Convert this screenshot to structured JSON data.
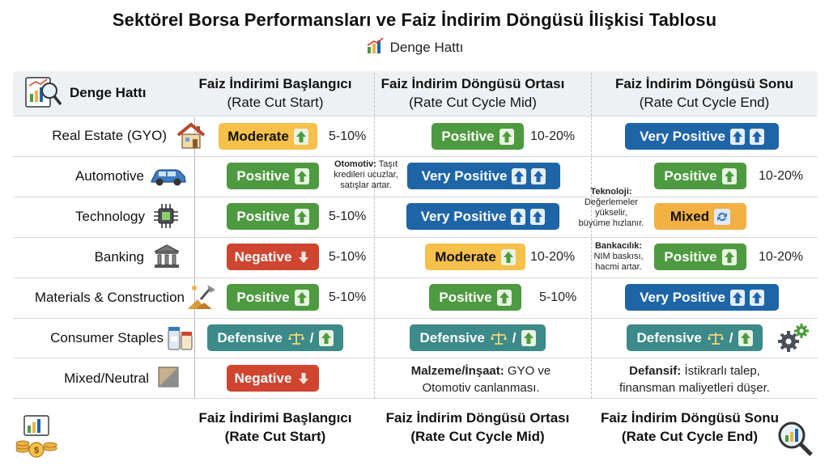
{
  "title": "Sektörel Borsa Performansları ve Faiz İndirim Döngüsü İlişkisi Tablosu",
  "subtitle": "Denge Hattı",
  "corner_label": "Denge Hattı",
  "columns": [
    {
      "name": "Faiz İndirimi Başlangıcı",
      "en": "(Rate Cut Start)"
    },
    {
      "name": "Faiz İndirim Döngüsü Ortası",
      "en": "(Rate Cut Cycle Mid)"
    },
    {
      "name": "Faiz İndirim Döngüsü Sonu",
      "en": "(Rate Cut Cycle End)"
    }
  ],
  "rows": [
    {
      "label": "Real Estate (GYO)",
      "icon": "house-icon",
      "start": {
        "text": "Moderate",
        "arrow": "up",
        "range": "5-10%"
      },
      "mid": {
        "text": "Positive",
        "arrow": "up",
        "range": "10-20%"
      },
      "end": {
        "text": "Very Positive",
        "arrow": "double-up",
        "range": ""
      }
    },
    {
      "label": "Automotive",
      "icon": "car-icon",
      "start": {
        "text": "Positive",
        "arrow": "up",
        "range": ""
      },
      "mid": {
        "text": "Very Positive",
        "arrow": "double-up",
        "range": ""
      },
      "end": {
        "text": "Positive",
        "arrow": "up",
        "range": "10-20%"
      }
    },
    {
      "label": "Technology",
      "icon": "chip-icon",
      "start": {
        "text": "Positive",
        "arrow": "up",
        "range": "5-10%"
      },
      "mid": {
        "text": "Very Positive",
        "arrow": "double-up",
        "range": ""
      },
      "end": {
        "text": "Mixed",
        "arrow": "cycle",
        "range": ""
      }
    },
    {
      "label": "Banking",
      "icon": "bank-icon",
      "start": {
        "text": "Negative",
        "arrow": "down",
        "range": "5-10%"
      },
      "mid": {
        "text": "Moderate",
        "arrow": "up",
        "range": "10-20%"
      },
      "end": {
        "text": "Positive",
        "arrow": "up",
        "range": "10-20%"
      }
    },
    {
      "label": "Materials & Construction",
      "icon": "construction-icon",
      "start": {
        "text": "Positive",
        "arrow": "up",
        "range": "5-10%"
      },
      "mid": {
        "text": "Positive",
        "arrow": "up",
        "range": "5-10%"
      },
      "end": {
        "text": "Very Positive",
        "arrow": "double-up",
        "range": ""
      }
    },
    {
      "label": "Consumer Staples",
      "icon": "jars-icon",
      "start": {
        "text": "Defensive",
        "arrow": "scale-up",
        "range": ""
      },
      "mid": {
        "text": "Defensive",
        "arrow": "scale-up",
        "range": ""
      },
      "end": {
        "text": "Defensive",
        "arrow": "scale-up",
        "range": ""
      }
    },
    {
      "label": "Mixed/Neutral",
      "icon": "neutral-square-icon",
      "start": {
        "text": "Negative",
        "arrow": "down",
        "range": ""
      }
    }
  ],
  "notes": {
    "otomotiv": {
      "title": "Otomotiv:",
      "line1": "Taşıt",
      "line2": "kredileri ucuzlar,",
      "line3": "satışlar artar."
    },
    "teknoloji": {
      "title": "Teknoloji:",
      "line1": "Değerlemeler",
      "line2": "yükselir,",
      "line3": "büyüme hızlanır."
    },
    "bankacilik": {
      "title": "Bankacılık:",
      "line1": "NIM baskısı,",
      "line2": "hacmi artar."
    },
    "malzeme": {
      "title": "Malzeme/İnşaat:",
      "line1": "GYO ve",
      "line2": "Otomotiv canlanması."
    },
    "defansif": {
      "title": "Defansif:",
      "line1": "İstikrarlı talep,",
      "line2": "finansman maliyetleri düşer."
    }
  },
  "footer": [
    {
      "name": "Faiz İndirimi Başlangıcı",
      "en": "(Rate Cut Start)"
    },
    {
      "name": "Faiz İndirim Döngüsü Ortası",
      "en": "(Rate Cut Cycle Mid)"
    },
    {
      "name": "Faiz İndirim Döngüsü Sonu",
      "en": "(Rate Cut Cycle End)"
    }
  ],
  "colors": {
    "positive": "#4e9a40",
    "very_positive": "#1e65a8",
    "moderate": "#f6c04a",
    "negative": "#cf4530",
    "mixed": "#f2b045",
    "defensive": "#3c8a8a"
  }
}
